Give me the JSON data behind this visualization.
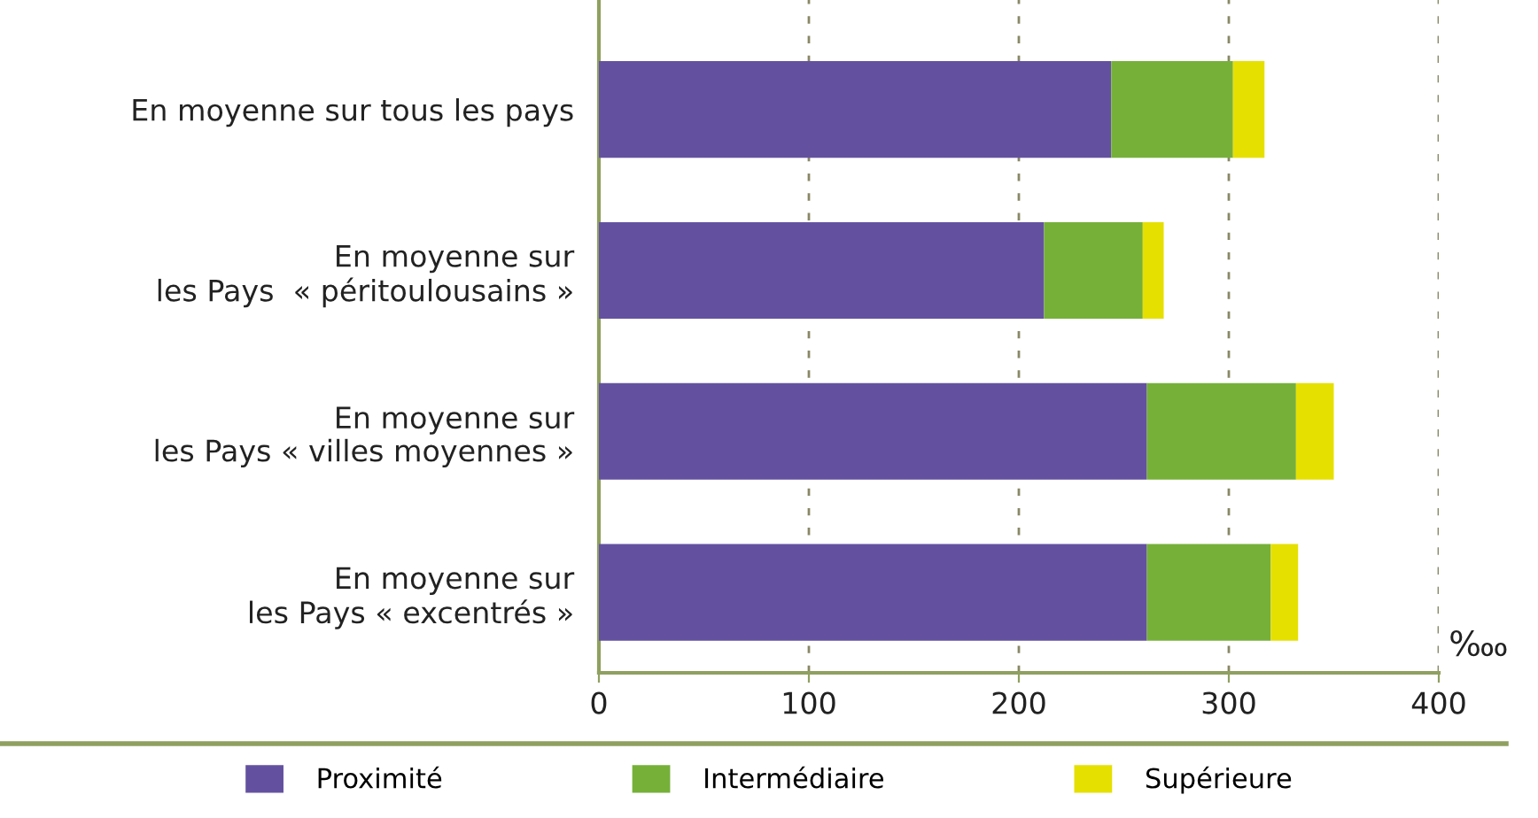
{
  "chart_data": {
    "type": "bar",
    "orientation": "horizontal",
    "stacked": true,
    "categories": [
      "En moyenne sur tous les pays",
      "En moyenne sur\nles Pays  « péritoulousains »",
      "En moyenne sur\nles Pays « villes moyennes »",
      "En moyenne sur\nles Pays « excentrés »"
    ],
    "series": [
      {
        "name": "Proximité",
        "color": "#6351a0",
        "values": [
          244,
          212,
          261,
          261
        ]
      },
      {
        "name": "Intermédiaire",
        "color": "#76b039",
        "values": [
          58,
          47,
          71,
          59
        ]
      },
      {
        "name": "Supérieure",
        "color": "#e6e000",
        "values": [
          15,
          10,
          18,
          13
        ]
      }
    ],
    "xlabel": "‱",
    "xlim": [
      0,
      400
    ],
    "xticks": [
      0,
      100,
      200,
      300,
      400
    ],
    "grid": "x",
    "legend": "bottom"
  }
}
